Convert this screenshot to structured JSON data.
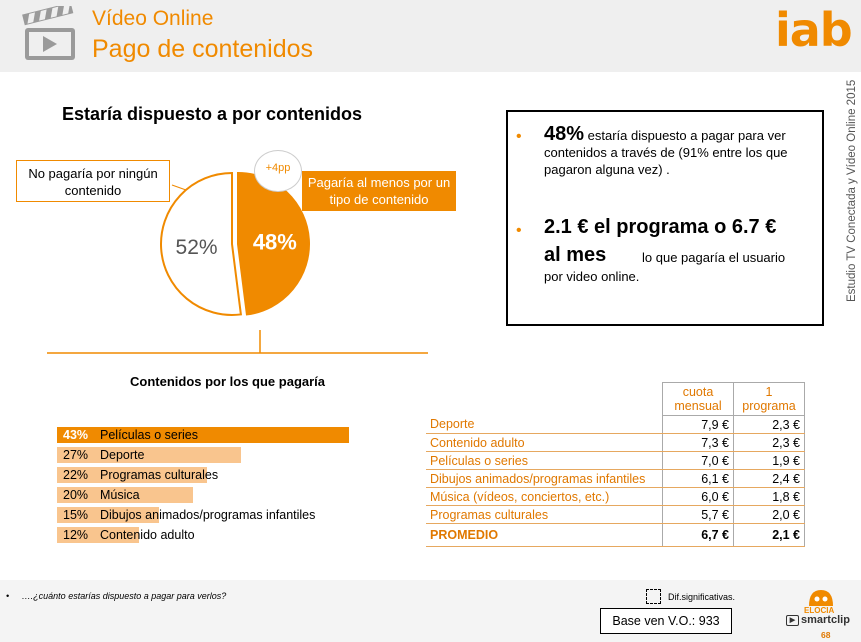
{
  "header": {
    "title": "Vídeo Online",
    "subtitle": "Pago de contenidos",
    "logo_text": "iab",
    "side_caption": "Estudio TV Conectada y Vídeo Online 2015"
  },
  "pie": {
    "heading": "Estaría dispuesto a por contenidos",
    "no_callout": "No pagaría por ningún contenido",
    "yes_callout": "Pagaría al menos por un tipo de contenido",
    "badge": "+4pp"
  },
  "info": {
    "b1_strong": "48%",
    "b1_text": " estaría dispuesto a pagar para ver contenidos a través de  (91% entre los que pagaron alguna vez) .",
    "b2_strong1": "2.1 € el programa o 6.7 €",
    "b2_strong2": "al mes",
    "b2_text1": "lo que pagaría el usuario",
    "b2_text2": "por video online."
  },
  "bars_heading": "Contenidos por los que pagaría",
  "price_table": {
    "col1": "cuota mensual",
    "col2": "1 programa",
    "rows": [
      {
        "label": "Deporte",
        "monthly": "7,9 €",
        "per_program": "2,3 €"
      },
      {
        "label": "Contenido adulto",
        "monthly": "7,3 €",
        "per_program": "2,3 €"
      },
      {
        "label": "Películas o series",
        "monthly": "7,0 €",
        "per_program": "1,9 €"
      },
      {
        "label": "Dibujos animados/programas infantiles",
        "monthly": "6,1 €",
        "per_program": "2,4 €"
      },
      {
        "label": "Música (vídeos, conciertos, etc.)",
        "monthly": "6,0 €",
        "per_program": "1,8 €"
      },
      {
        "label": "Programas culturales",
        "monthly": "5,7 €",
        "per_program": "2,0 €"
      }
    ],
    "average": {
      "label": "PROMEDIO",
      "monthly": "6,7 €",
      "per_program": "2,1 €"
    }
  },
  "footer": {
    "bullet": "•",
    "question": "….¿cuánto estarías dispuesto a pagar para verlos?",
    "dif": "Dif.significativas.",
    "base": "Base ven V.O.: 933",
    "elocia": "ELOCIA",
    "smartclip": "smartclip",
    "page": "68"
  },
  "colors": {
    "accent": "#f08a00",
    "bar_light": "#f9c58e",
    "bar_dark": "#f08a00"
  },
  "chart_data": [
    {
      "type": "pie",
      "title": "Estaría dispuesto a por contenidos",
      "slices": [
        {
          "label": "Pagaría al menos por un tipo de contenido",
          "value": 48,
          "display": "48%"
        },
        {
          "label": "No pagaría por ningún contenido",
          "value": 52,
          "display": "52%"
        }
      ]
    },
    {
      "type": "bar",
      "orientation": "horizontal",
      "title": "Contenidos por los que pagaría",
      "categories": [
        "Películas o series",
        "Deporte",
        "Programas culturales",
        "Música",
        "Dibujos animados/programas infantiles",
        "Contenido adulto"
      ],
      "values": [
        43,
        27,
        22,
        20,
        15,
        12
      ],
      "value_labels": [
        "43%",
        "27%",
        "22%",
        "20%",
        "15%",
        "12%"
      ],
      "max": 100
    }
  ]
}
